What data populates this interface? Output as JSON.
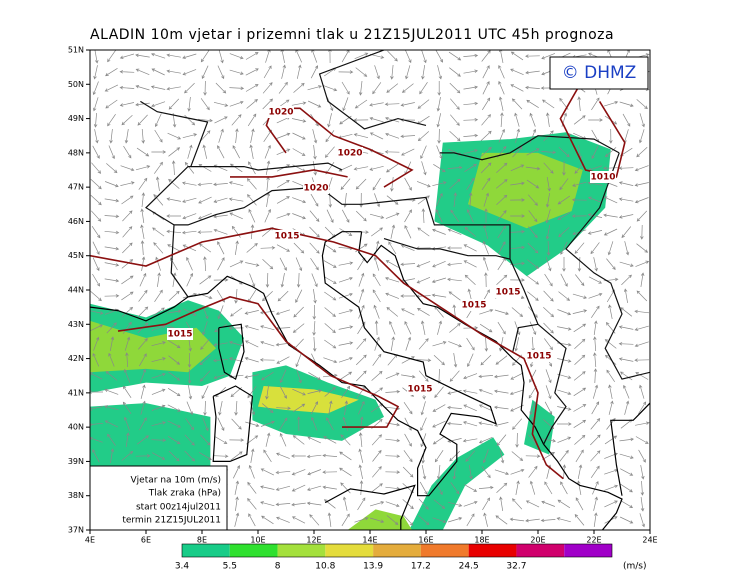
{
  "header": {
    "title": "ALADIN 10m vjetar i prizemni tlak u 21Z15JUL2011 UTC 45h prognoza"
  },
  "logo": "© DHMZ",
  "map": {
    "lat_labels": [
      "51N",
      "50N",
      "49N",
      "48N",
      "47N",
      "46N",
      "45N",
      "44N",
      "43N",
      "42N",
      "41N",
      "40N",
      "39N",
      "38N",
      "37N"
    ],
    "lon_labels": [
      "4E",
      "6E",
      "8E",
      "10E",
      "12E",
      "14E",
      "16E",
      "18E",
      "20E",
      "22E",
      "24E"
    ],
    "isobar_labels": [
      "1020",
      "1020",
      "1020",
      "1015",
      "1010",
      "1015",
      "1015",
      "1015",
      "1015",
      "1015"
    ]
  },
  "info_box": {
    "lines": [
      "Vjetar na 10m (m/s)",
      "Tlak zraka (hPa)",
      "start 00z14jul2011",
      "termin 21Z15JUL2011"
    ]
  },
  "colorbar": {
    "labels": [
      "3.4",
      "5.5",
      "8",
      "10.8",
      "13.9",
      "17.2",
      "24.5",
      "32.7"
    ],
    "unit": "(m/s)"
  }
}
